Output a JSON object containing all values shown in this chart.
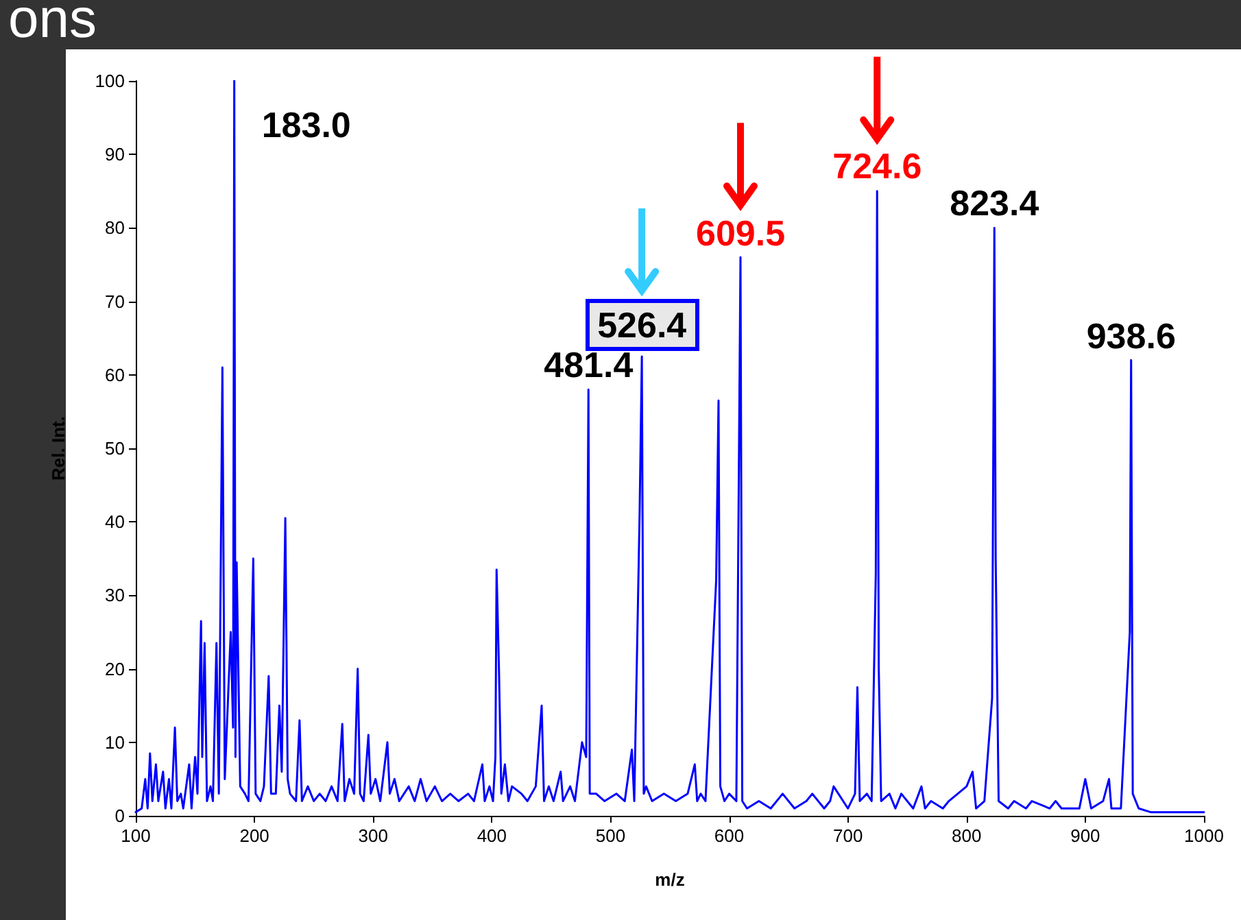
{
  "chart_data": {
    "type": "line",
    "title": "ons",
    "xlabel": "m/z",
    "ylabel": "Rel. Int.",
    "x": [
      100,
      105,
      108,
      110,
      112,
      114,
      117,
      119,
      123,
      125,
      128,
      130,
      133,
      135,
      138,
      140,
      145,
      147,
      150,
      152,
      155,
      156,
      158,
      160,
      163,
      165,
      168,
      170,
      173,
      175,
      180,
      182,
      183,
      184,
      185,
      188,
      192,
      195,
      199,
      201,
      205,
      208,
      212,
      214,
      218,
      221,
      223,
      226,
      228,
      230,
      235,
      238,
      240,
      245,
      250,
      255,
      260,
      265,
      270,
      274,
      276,
      280,
      284,
      287,
      289,
      292,
      296,
      298,
      302,
      306,
      312,
      314,
      318,
      322,
      330,
      335,
      340,
      345,
      352,
      358,
      365,
      372,
      380,
      385,
      392,
      394,
      398,
      401,
      403,
      404,
      406,
      408,
      411,
      414,
      417,
      425,
      430,
      437,
      442,
      444,
      448,
      452,
      458,
      460,
      466,
      470,
      476,
      479.5,
      481.4,
      482.5,
      488,
      495,
      505,
      512,
      518,
      520,
      524.5,
      526.4,
      528,
      530,
      535,
      545,
      555,
      565,
      571,
      573,
      576,
      580,
      589,
      591,
      592.5,
      596,
      600,
      606,
      609.5,
      611,
      615,
      625,
      635,
      645,
      655,
      665,
      670,
      680,
      685,
      688,
      700,
      706,
      708,
      710,
      716,
      720,
      723.5,
      724.6,
      726,
      728,
      735,
      740,
      745,
      755,
      762,
      765,
      770,
      780,
      785,
      800,
      805,
      808,
      815,
      821.5,
      823.4,
      824.5,
      827,
      835,
      840,
      850,
      855,
      870,
      875,
      880,
      895,
      900,
      905,
      915,
      920,
      922,
      930,
      937.5,
      938.6,
      940,
      945,
      955,
      1000
    ],
    "series": [
      {
        "color": "#0000ff",
        "values": [
          0.5,
          1,
          5,
          1,
          8.5,
          2,
          7,
          2,
          6,
          1,
          5,
          1,
          12,
          2,
          3,
          1,
          7,
          1,
          8,
          3,
          26.5,
          8,
          23.5,
          2,
          4,
          2,
          23.5,
          3,
          61,
          5,
          25,
          12,
          100,
          8,
          34.5,
          4,
          3,
          2,
          35,
          3,
          2,
          4,
          19,
          3,
          3,
          15,
          6,
          40.5,
          5,
          3,
          2,
          13,
          2,
          4,
          2,
          3,
          2,
          4,
          2,
          12.5,
          2,
          5,
          3,
          20,
          3,
          2,
          11,
          3,
          5,
          2,
          10,
          3,
          5,
          2,
          4,
          2,
          5,
          2,
          4,
          2,
          3,
          2,
          3,
          2,
          7,
          2,
          4,
          2,
          8,
          33.5,
          20,
          3,
          7,
          2,
          4,
          3,
          2,
          4,
          15,
          2,
          4,
          2,
          6,
          2,
          4,
          2,
          10,
          8,
          58,
          3,
          3,
          2,
          3,
          2,
          9,
          2,
          41,
          62.5,
          3,
          4,
          2,
          3,
          2,
          3,
          7,
          2,
          3,
          2,
          32,
          56.5,
          4,
          2,
          3,
          2,
          76,
          2,
          1,
          2,
          1,
          3,
          1,
          2,
          3,
          1,
          2,
          4,
          1,
          3,
          17.5,
          2,
          3,
          2,
          33,
          85,
          20,
          2,
          3,
          1,
          3,
          1,
          4,
          1,
          2,
          1,
          2,
          4,
          6,
          1,
          2,
          16,
          80,
          35,
          2,
          1,
          2,
          1,
          2,
          1,
          2,
          1,
          1,
          5,
          1,
          2,
          5,
          1,
          1,
          25,
          62,
          3,
          1,
          0.5,
          0.5
        ]
      }
    ],
    "xlim": [
      100,
      1000
    ],
    "xticks": [
      100,
      200,
      300,
      400,
      500,
      600,
      700,
      800,
      900,
      1000
    ],
    "ylim": [
      0,
      100
    ],
    "yticks": [
      0,
      10,
      20,
      30,
      40,
      50,
      60,
      70,
      80,
      90,
      100
    ],
    "grid": false,
    "marker": "none",
    "line_style": "solid",
    "annotations": [
      {
        "text": "183.0",
        "x": 183,
        "y": 100
      },
      {
        "text": "481.4",
        "x": 481.4,
        "y": 58
      },
      {
        "text": "526.4",
        "x": 526.4,
        "y": 62.5
      },
      {
        "text": "609.5",
        "x": 609.5,
        "y": 76
      },
      {
        "text": "724.6",
        "x": 724.6,
        "y": 85
      },
      {
        "text": "823.4",
        "x": 823.4,
        "y": 80
      },
      {
        "text": "938.6",
        "x": 938.6,
        "y": 62
      }
    ]
  }
}
